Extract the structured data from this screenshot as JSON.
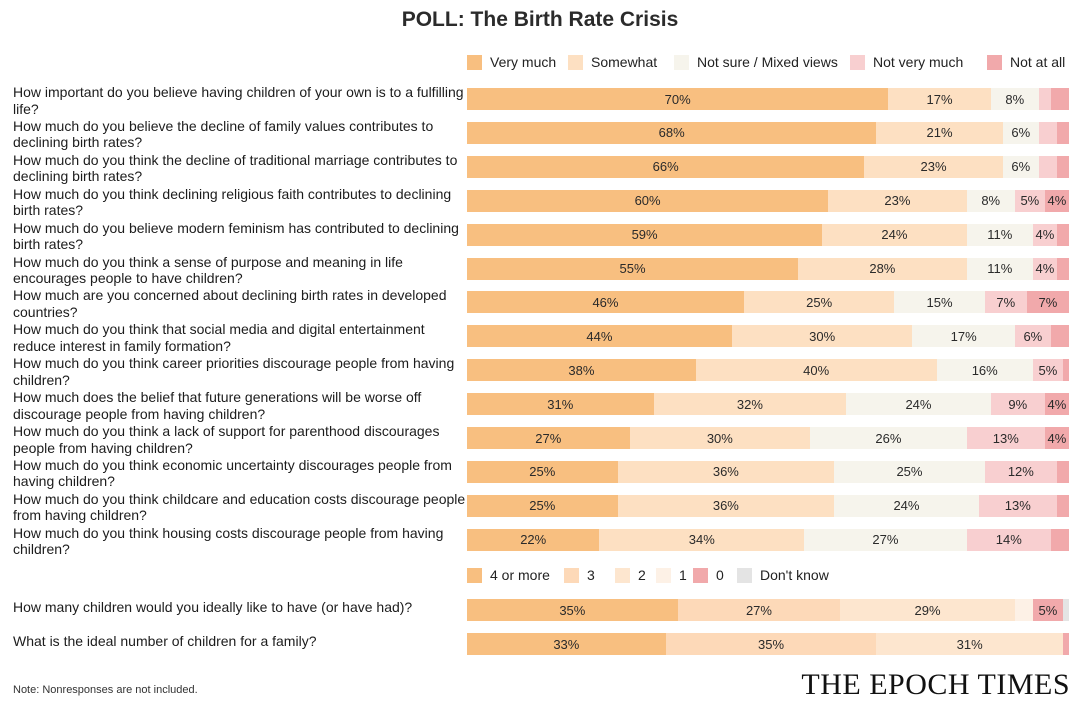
{
  "title": "POLL: The Birth Rate Crisis",
  "note": "Note: Nonresponses are not included.",
  "logo_text": "THE EPOCH TIMES",
  "chart_data": [
    {
      "type": "bar",
      "orientation": "horizontal",
      "stacked": "percent",
      "legend": [
        "Very much",
        "Somewhat",
        "Not sure / Mixed views",
        "Not very much",
        "Not at all"
      ],
      "colors": [
        "#f8bf80",
        "#fde0c2",
        "#f6f4ec",
        "#f8cfd0",
        "#f1a9ab"
      ],
      "categories": [
        "How important do you believe having children of your own is to a fulfilling life?",
        "How much do you believe the decline of family values contributes to declining birth rates?",
        "How much do you think the decline of traditional marriage contributes to declining birth rates?",
        "How much do you think declining religious faith contributes to declining birth rates?",
        "How much do you believe modern feminism has contributed to declining birth rates?",
        "How much do you think a sense of purpose and meaning in life encourages people to have children?",
        "How much are you concerned about declining birth rates in developed countries?",
        "How much do you think that social media and digital entertainment reduce interest in family formation?",
        "How much do you think career priorities discourage people from having children?",
        "How much does the belief that future generations will be worse off discourage people from having children?",
        "How much do you think a lack of support for parenthood discourages people from having children?",
        "How much do you think economic uncertainty discourages people from having children?",
        "How much do you think childcare and education costs discourage people from having children?",
        "How much do you think housing costs discourage people from having children?"
      ],
      "rows": [
        [
          70,
          17,
          8,
          2,
          3
        ],
        [
          68,
          21,
          6,
          3,
          2
        ],
        [
          66,
          23,
          6,
          3,
          2
        ],
        [
          60,
          23,
          8,
          5,
          4
        ],
        [
          59,
          24,
          11,
          4,
          2
        ],
        [
          55,
          28,
          11,
          4,
          2
        ],
        [
          46,
          25,
          15,
          7,
          7
        ],
        [
          44,
          30,
          17,
          6,
          3
        ],
        [
          38,
          40,
          16,
          5,
          1
        ],
        [
          31,
          32,
          24,
          9,
          4
        ],
        [
          27,
          30,
          26,
          13,
          4
        ],
        [
          25,
          36,
          25,
          12,
          2
        ],
        [
          25,
          36,
          24,
          13,
          2
        ],
        [
          22,
          34,
          27,
          14,
          3
        ]
      ],
      "labels": [
        [
          "70%",
          "17%",
          "8%",
          "",
          ""
        ],
        [
          "68%",
          "21%",
          "6%",
          "",
          ""
        ],
        [
          "66%",
          "23%",
          "6%",
          "",
          ""
        ],
        [
          "60%",
          "23%",
          "8%",
          "5%",
          "4%"
        ],
        [
          "59%",
          "24%",
          "11%",
          "4%",
          ""
        ],
        [
          "55%",
          "28%",
          "11%",
          "4%",
          ""
        ],
        [
          "46%",
          "25%",
          "15%",
          "7%",
          "7%"
        ],
        [
          "44%",
          "30%",
          "17%",
          "6%",
          ""
        ],
        [
          "38%",
          "40%",
          "16%",
          "5%",
          ""
        ],
        [
          "31%",
          "32%",
          "24%",
          "9%",
          "4%"
        ],
        [
          "27%",
          "30%",
          "26%",
          "13%",
          "4%"
        ],
        [
          "25%",
          "36%",
          "25%",
          "12%",
          ""
        ],
        [
          "25%",
          "36%",
          "24%",
          "13%",
          ""
        ],
        [
          "22%",
          "34%",
          "27%",
          "14%",
          ""
        ]
      ]
    },
    {
      "type": "bar",
      "orientation": "horizontal",
      "stacked": "percent",
      "legend": [
        "4 or more",
        "3",
        "2",
        "1",
        "0",
        "Don't know"
      ],
      "colors": [
        "#f8bf80",
        "#fdd9b8",
        "#fde6cf",
        "#fdf1e6",
        "#f1a9ab",
        "#e4e4e4"
      ],
      "categories": [
        "How many children would you ideally like to have (or have had)?",
        "What is the ideal number of children for a family?"
      ],
      "rows": [
        [
          35,
          27,
          29,
          3,
          5,
          1
        ],
        [
          33,
          35,
          31,
          0,
          1,
          0
        ]
      ],
      "labels": [
        [
          "35%",
          "27%",
          "29%",
          "",
          "5%",
          ""
        ],
        [
          "33%",
          "35%",
          "31%",
          "",
          "",
          ""
        ]
      ]
    }
  ]
}
